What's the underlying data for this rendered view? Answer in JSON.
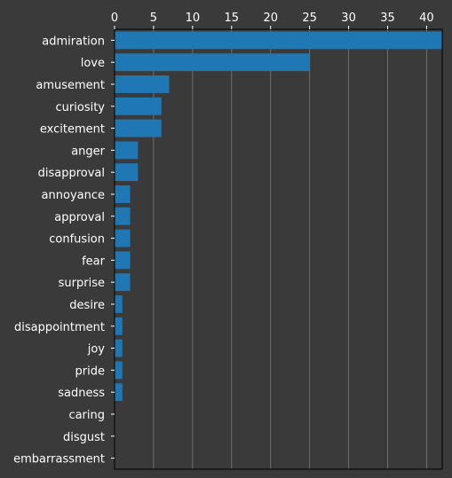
{
  "chart_data": {
    "type": "bar",
    "orientation": "horizontal",
    "x_axis_position": "top",
    "categories": [
      "admiration",
      "love",
      "amusement",
      "curiosity",
      "excitement",
      "anger",
      "disapproval",
      "annoyance",
      "approval",
      "confusion",
      "fear",
      "surprise",
      "desire",
      "disappointment",
      "joy",
      "pride",
      "sadness",
      "caring",
      "disgust",
      "embarrassment"
    ],
    "values": [
      42,
      25,
      7,
      6,
      6,
      3,
      3,
      2,
      2,
      2,
      2,
      2,
      1,
      1,
      1,
      1,
      1,
      0,
      0,
      0
    ],
    "xlim": [
      0,
      42
    ],
    "xticks": [
      0,
      5,
      10,
      15,
      20,
      25,
      30,
      35,
      40
    ],
    "grid": true,
    "title": "",
    "xlabel": "",
    "ylabel": "",
    "colors": {
      "bar": "#1f77b4",
      "background": "#3a3a3a",
      "text": "#ffffff",
      "grid": "#808080",
      "axis": "#000000"
    }
  }
}
